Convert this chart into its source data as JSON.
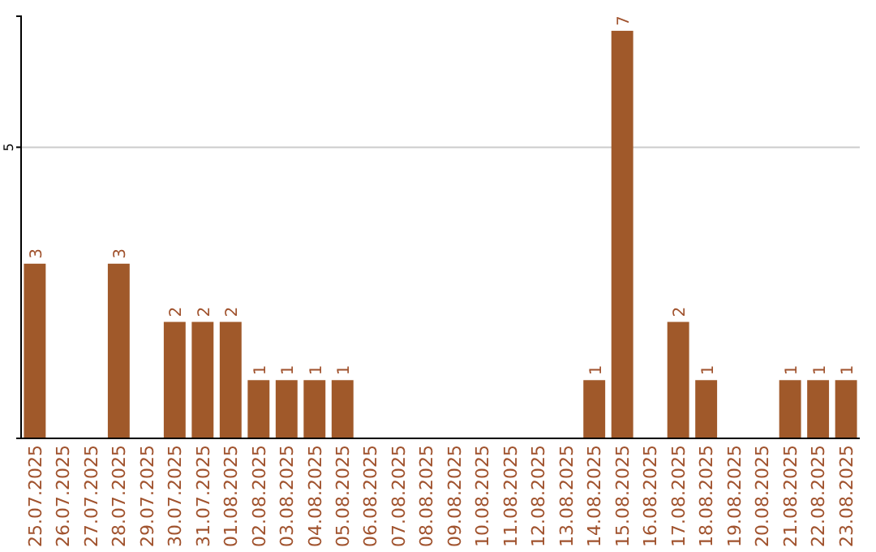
{
  "chart_data": {
    "type": "bar",
    "categories": [
      "25.07.2025",
      "26.07.2025",
      "27.07.2025",
      "28.07.2025",
      "29.07.2025",
      "30.07.2025",
      "31.07.2025",
      "01.08.2025",
      "02.08.2025",
      "03.08.2025",
      "04.08.2025",
      "05.08.2025",
      "06.08.2025",
      "07.08.2025",
      "08.08.2025",
      "09.08.2025",
      "10.08.2025",
      "11.08.2025",
      "12.08.2025",
      "13.08.2025",
      "14.08.2025",
      "15.08.2025",
      "16.08.2025",
      "17.08.2025",
      "18.08.2025",
      "19.08.2025",
      "20.08.2025",
      "21.08.2025",
      "22.08.2025",
      "23.08.2025"
    ],
    "values": [
      3,
      0,
      0,
      3,
      0,
      2,
      2,
      2,
      1,
      1,
      1,
      1,
      0,
      0,
      0,
      0,
      0,
      0,
      0,
      0,
      1,
      7,
      0,
      2,
      1,
      0,
      0,
      1,
      1,
      1
    ],
    "value_labels": [
      "3",
      null,
      null,
      "3",
      null,
      "2",
      "2",
      "2",
      "1",
      "1",
      "1",
      "1",
      null,
      null,
      null,
      null,
      null,
      null,
      null,
      null,
      "1",
      "7",
      null,
      "2",
      "1",
      null,
      null,
      "1",
      "1",
      "1"
    ],
    "color": "#a0592a",
    "ylim": [
      0,
      7.25
    ],
    "yticks": [
      5
    ],
    "grid": "y"
  }
}
